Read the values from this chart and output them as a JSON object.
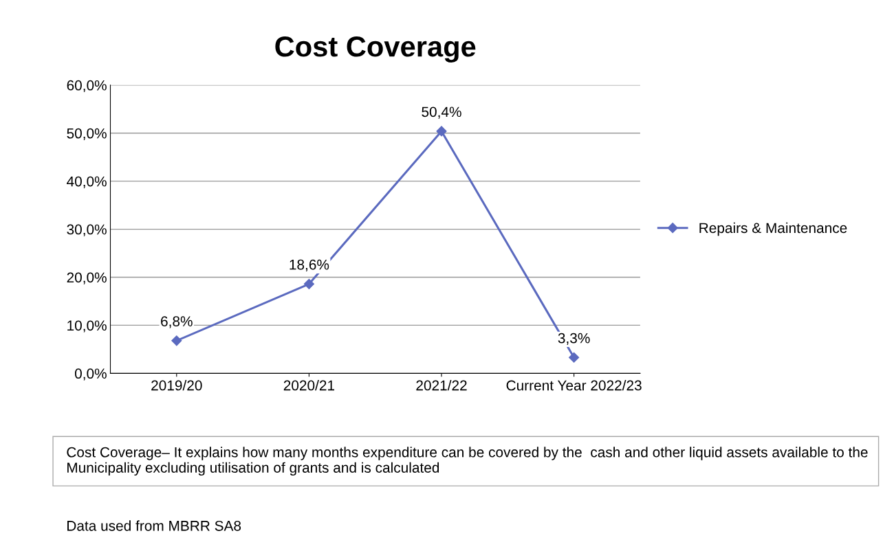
{
  "chart_data": {
    "type": "line",
    "title": "Cost Coverage",
    "categories": [
      "2019/20",
      "2020/21",
      "2021/22",
      "Current Year 2022/23"
    ],
    "series": [
      {
        "name": "Repairs & Maintenance",
        "color": "#5b6abf",
        "values": [
          6.8,
          18.6,
          50.4,
          3.3
        ],
        "value_labels": [
          "6,8%",
          "18,6%",
          "50,4%",
          "3,3%"
        ]
      }
    ],
    "ylim": [
      0,
      60
    ],
    "yticks": [
      {
        "value": 0,
        "label": "0,0%"
      },
      {
        "value": 10,
        "label": "10,0%"
      },
      {
        "value": 20,
        "label": "20,0%"
      },
      {
        "value": 30,
        "label": "30,0%"
      },
      {
        "value": 40,
        "label": "40,0%"
      },
      {
        "value": 50,
        "label": "50,0%"
      },
      {
        "value": 60,
        "label": "60,0%"
      }
    ],
    "grid": "y",
    "legend": "right",
    "marker": "diamond",
    "line_style": "solid",
    "annotations": [
      "Cost Coverage– It explains how many months expenditure can be covered by the  cash and other liquid assets available to the Municipality excluding utilisation of grants and is calculated",
      "Data used from MBRR SA8"
    ]
  }
}
